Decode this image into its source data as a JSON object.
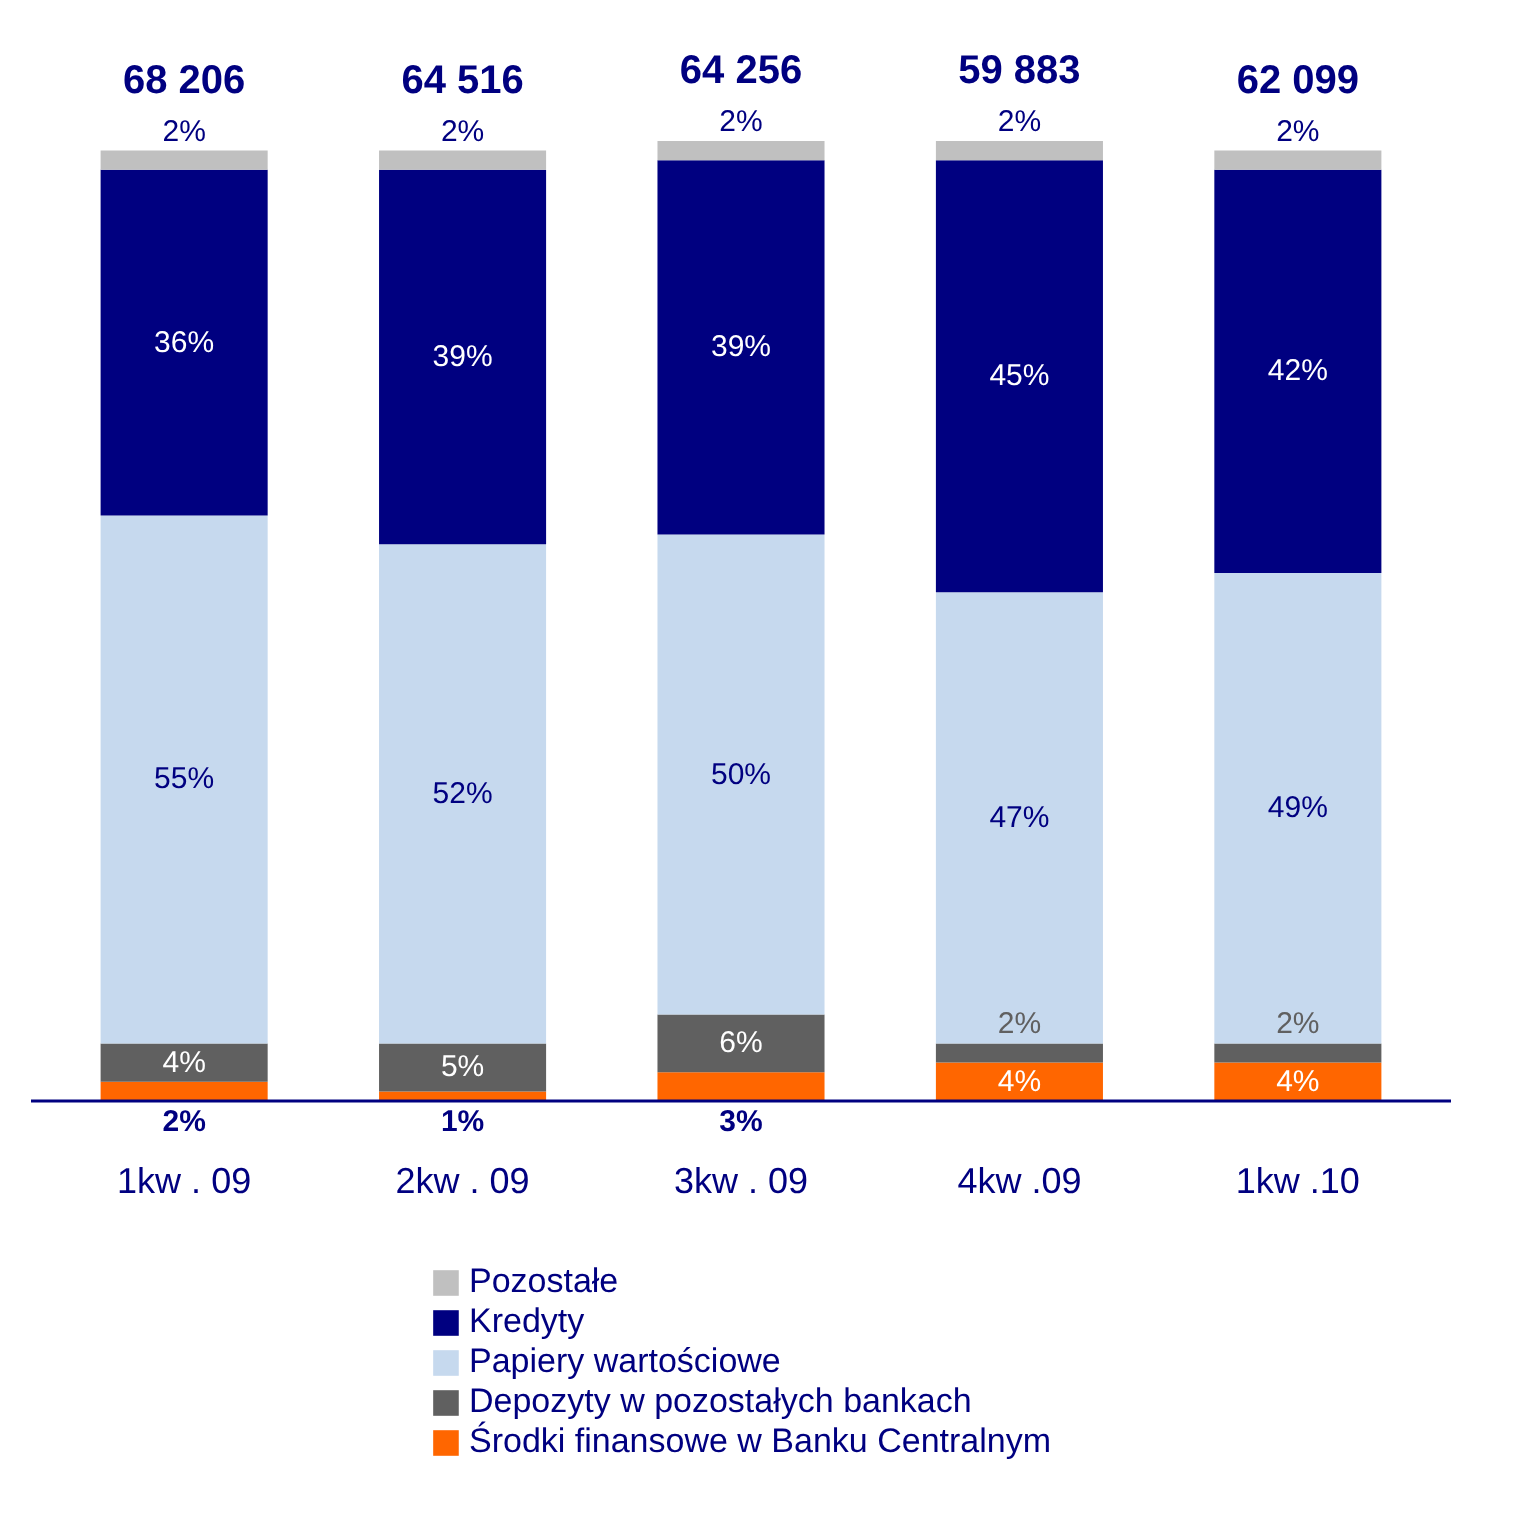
{
  "chart_data": {
    "type": "bar",
    "stacked": true,
    "categories": [
      "1kw . 09",
      "2kw . 09",
      "3kw . 09",
      "4kw .09",
      "1kw .10"
    ],
    "series": [
      {
        "name": "Środki finansowe w Banku Centralnym",
        "color": "#ff6600",
        "values": [
          2,
          1,
          3,
          4,
          4
        ],
        "value_labels": [
          "2%",
          "1%",
          "3%",
          "4%",
          "4%"
        ]
      },
      {
        "name": "Depozyty w pozostałych bankach",
        "color": "#606060",
        "values": [
          4,
          5,
          6,
          2,
          2
        ],
        "value_labels": [
          "4%",
          "5%",
          "6%",
          "2%",
          "2%"
        ]
      },
      {
        "name": "Papiery wartościowe",
        "color": "#c6d9ee",
        "values": [
          55,
          52,
          50,
          47,
          49
        ],
        "value_labels": [
          "55%",
          "52%",
          "50%",
          "47%",
          "49%"
        ]
      },
      {
        "name": "Kredyty",
        "color": "#000080",
        "values": [
          36,
          39,
          39,
          45,
          42
        ],
        "value_labels": [
          "36%",
          "39%",
          "39%",
          "45%",
          "42%"
        ]
      },
      {
        "name": "Pozostałe",
        "color": "#c0c0c0",
        "values": [
          2,
          2,
          2,
          2,
          2
        ],
        "value_labels": [
          "2%",
          "2%",
          "2%",
          "2%",
          "2%"
        ]
      }
    ],
    "annotations": [
      {
        "text": "68 206",
        "x": "1kw . 09",
        "y": 99
      },
      {
        "text": "64 516",
        "x": "2kw . 09",
        "y": 99
      },
      {
        "text": "64 256",
        "x": "3kw . 09",
        "y": 100
      },
      {
        "text": "59 883",
        "x": "4kw .09",
        "y": 100
      },
      {
        "text": "62 099",
        "x": "1kw .10",
        "y": 99
      }
    ],
    "legend": "bottom",
    "grid": false
  }
}
